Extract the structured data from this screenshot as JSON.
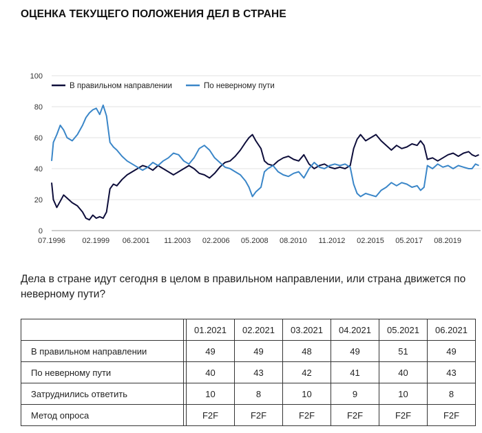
{
  "page": {
    "title": "ОЦЕНКА ТЕКУЩЕГО ПОЛОЖЕНИЯ ДЕЛ В СТРАНЕ",
    "question": "Дела в стране идут сегодня в целом в правильном направлении, или страна движется по неверному пути?"
  },
  "chart_data": {
    "type": "line",
    "legend_position": "top-left",
    "grid": "horizontal",
    "ylim": [
      0,
      100
    ],
    "yticks": [
      0,
      20,
      40,
      60,
      80,
      100
    ],
    "xlim": [
      1996.5,
      2021.5
    ],
    "xticks": [
      {
        "label": "07.1996",
        "x": 1996.5
      },
      {
        "label": "02.1999",
        "x": 1999.08
      },
      {
        "label": "06.2001",
        "x": 2001.42
      },
      {
        "label": "11.2003",
        "x": 2003.83
      },
      {
        "label": "02.2006",
        "x": 2006.08
      },
      {
        "label": "05.2008",
        "x": 2008.33
      },
      {
        "label": "08.2010",
        "x": 2010.58
      },
      {
        "label": "11.2012",
        "x": 2012.83
      },
      {
        "label": "02.2015",
        "x": 2015.08
      },
      {
        "label": "05.2017",
        "x": 2017.33
      },
      {
        "label": "08.2019",
        "x": 2019.58
      }
    ],
    "series": [
      {
        "name": "В правильном направлении",
        "color": "#0d0d3a",
        "points": [
          [
            1996.5,
            31
          ],
          [
            1996.6,
            20
          ],
          [
            1996.8,
            15
          ],
          [
            1997.0,
            19
          ],
          [
            1997.2,
            23
          ],
          [
            1997.4,
            21
          ],
          [
            1997.7,
            18
          ],
          [
            1998.0,
            16
          ],
          [
            1998.3,
            12
          ],
          [
            1998.5,
            8
          ],
          [
            1998.7,
            7
          ],
          [
            1998.9,
            10
          ],
          [
            1999.1,
            8
          ],
          [
            1999.3,
            9
          ],
          [
            1999.5,
            8
          ],
          [
            1999.7,
            12
          ],
          [
            1999.9,
            27
          ],
          [
            2000.1,
            30
          ],
          [
            2000.3,
            29
          ],
          [
            2000.6,
            33
          ],
          [
            2000.9,
            36
          ],
          [
            2001.2,
            38
          ],
          [
            2001.5,
            40
          ],
          [
            2001.8,
            42
          ],
          [
            2002.1,
            41
          ],
          [
            2002.4,
            39
          ],
          [
            2002.7,
            42
          ],
          [
            2003.0,
            40
          ],
          [
            2003.3,
            38
          ],
          [
            2003.6,
            36
          ],
          [
            2003.9,
            38
          ],
          [
            2004.2,
            40
          ],
          [
            2004.5,
            42
          ],
          [
            2004.8,
            40
          ],
          [
            2005.1,
            37
          ],
          [
            2005.4,
            36
          ],
          [
            2005.7,
            34
          ],
          [
            2006.0,
            37
          ],
          [
            2006.3,
            41
          ],
          [
            2006.6,
            44
          ],
          [
            2006.9,
            45
          ],
          [
            2007.2,
            48
          ],
          [
            2007.5,
            52
          ],
          [
            2007.8,
            57
          ],
          [
            2008.0,
            60
          ],
          [
            2008.2,
            62
          ],
          [
            2008.4,
            58
          ],
          [
            2008.7,
            53
          ],
          [
            2008.9,
            45
          ],
          [
            2009.1,
            43
          ],
          [
            2009.4,
            42
          ],
          [
            2009.7,
            45
          ],
          [
            2010.0,
            47
          ],
          [
            2010.3,
            48
          ],
          [
            2010.6,
            46
          ],
          [
            2010.9,
            45
          ],
          [
            2011.2,
            49
          ],
          [
            2011.5,
            43
          ],
          [
            2011.8,
            40
          ],
          [
            2012.1,
            42
          ],
          [
            2012.4,
            43
          ],
          [
            2012.7,
            41
          ],
          [
            2013.0,
            40
          ],
          [
            2013.3,
            41
          ],
          [
            2013.6,
            40
          ],
          [
            2013.9,
            42
          ],
          [
            2014.1,
            53
          ],
          [
            2014.3,
            59
          ],
          [
            2014.5,
            62
          ],
          [
            2014.8,
            58
          ],
          [
            2015.1,
            60
          ],
          [
            2015.4,
            62
          ],
          [
            2015.7,
            58
          ],
          [
            2016.0,
            55
          ],
          [
            2016.3,
            52
          ],
          [
            2016.6,
            55
          ],
          [
            2016.9,
            53
          ],
          [
            2017.2,
            54
          ],
          [
            2017.5,
            56
          ],
          [
            2017.8,
            55
          ],
          [
            2018.0,
            58
          ],
          [
            2018.2,
            55
          ],
          [
            2018.4,
            46
          ],
          [
            2018.7,
            47
          ],
          [
            2019.0,
            45
          ],
          [
            2019.3,
            47
          ],
          [
            2019.6,
            49
          ],
          [
            2019.9,
            50
          ],
          [
            2020.2,
            48
          ],
          [
            2020.5,
            50
          ],
          [
            2020.8,
            51
          ],
          [
            2021.0,
            49
          ],
          [
            2021.2,
            48
          ],
          [
            2021.4,
            49
          ]
        ]
      },
      {
        "name": "По неверному пути",
        "color": "#3a86c8",
        "points": [
          [
            1996.5,
            45
          ],
          [
            1996.6,
            57
          ],
          [
            1996.8,
            62
          ],
          [
            1997.0,
            68
          ],
          [
            1997.2,
            65
          ],
          [
            1997.4,
            60
          ],
          [
            1997.7,
            58
          ],
          [
            1998.0,
            62
          ],
          [
            1998.3,
            68
          ],
          [
            1998.5,
            73
          ],
          [
            1998.7,
            76
          ],
          [
            1998.9,
            78
          ],
          [
            1999.1,
            79
          ],
          [
            1999.3,
            75
          ],
          [
            1999.5,
            81
          ],
          [
            1999.7,
            74
          ],
          [
            1999.9,
            57
          ],
          [
            2000.1,
            54
          ],
          [
            2000.3,
            52
          ],
          [
            2000.6,
            48
          ],
          [
            2000.9,
            45
          ],
          [
            2001.2,
            43
          ],
          [
            2001.5,
            41
          ],
          [
            2001.8,
            39
          ],
          [
            2002.1,
            41
          ],
          [
            2002.4,
            44
          ],
          [
            2002.7,
            42
          ],
          [
            2003.0,
            45
          ],
          [
            2003.3,
            47
          ],
          [
            2003.6,
            50
          ],
          [
            2003.9,
            49
          ],
          [
            2004.2,
            45
          ],
          [
            2004.5,
            43
          ],
          [
            2004.8,
            47
          ],
          [
            2005.1,
            53
          ],
          [
            2005.4,
            55
          ],
          [
            2005.7,
            52
          ],
          [
            2006.0,
            47
          ],
          [
            2006.3,
            44
          ],
          [
            2006.6,
            41
          ],
          [
            2006.9,
            40
          ],
          [
            2007.2,
            38
          ],
          [
            2007.5,
            36
          ],
          [
            2007.8,
            32
          ],
          [
            2008.0,
            28
          ],
          [
            2008.2,
            22
          ],
          [
            2008.4,
            25
          ],
          [
            2008.7,
            28
          ],
          [
            2008.9,
            38
          ],
          [
            2009.1,
            40
          ],
          [
            2009.4,
            42
          ],
          [
            2009.7,
            38
          ],
          [
            2010.0,
            36
          ],
          [
            2010.3,
            35
          ],
          [
            2010.6,
            37
          ],
          [
            2010.9,
            38
          ],
          [
            2011.2,
            34
          ],
          [
            2011.5,
            40
          ],
          [
            2011.8,
            44
          ],
          [
            2012.1,
            41
          ],
          [
            2012.4,
            40
          ],
          [
            2012.7,
            42
          ],
          [
            2013.0,
            43
          ],
          [
            2013.3,
            42
          ],
          [
            2013.6,
            43
          ],
          [
            2013.9,
            41
          ],
          [
            2014.1,
            30
          ],
          [
            2014.3,
            24
          ],
          [
            2014.5,
            22
          ],
          [
            2014.8,
            24
          ],
          [
            2015.1,
            23
          ],
          [
            2015.4,
            22
          ],
          [
            2015.7,
            26
          ],
          [
            2016.0,
            28
          ],
          [
            2016.3,
            31
          ],
          [
            2016.6,
            29
          ],
          [
            2016.9,
            31
          ],
          [
            2017.2,
            30
          ],
          [
            2017.5,
            28
          ],
          [
            2017.8,
            29
          ],
          [
            2018.0,
            26
          ],
          [
            2018.2,
            28
          ],
          [
            2018.4,
            42
          ],
          [
            2018.7,
            40
          ],
          [
            2019.0,
            43
          ],
          [
            2019.3,
            41
          ],
          [
            2019.6,
            42
          ],
          [
            2019.9,
            40
          ],
          [
            2020.2,
            42
          ],
          [
            2020.5,
            41
          ],
          [
            2020.8,
            40
          ],
          [
            2021.0,
            40
          ],
          [
            2021.2,
            43
          ],
          [
            2021.4,
            42
          ]
        ]
      }
    ]
  },
  "table": {
    "columns": [
      "01.2021",
      "02.2021",
      "03.2021",
      "04.2021",
      "05.2021",
      "06.2021"
    ],
    "rows": [
      {
        "label": "В правильном направлении",
        "values": [
          "49",
          "49",
          "48",
          "49",
          "51",
          "49"
        ]
      },
      {
        "label": "По неверному пути",
        "values": [
          "40",
          "43",
          "42",
          "41",
          "40",
          "43"
        ]
      },
      {
        "label": "Затруднились ответить",
        "values": [
          "10",
          "8",
          "10",
          "9",
          "10",
          "8"
        ]
      },
      {
        "label": "Метод опроса",
        "values": [
          "F2F",
          "F2F",
          "F2F",
          "F2F",
          "F2F",
          "F2F"
        ]
      }
    ]
  }
}
